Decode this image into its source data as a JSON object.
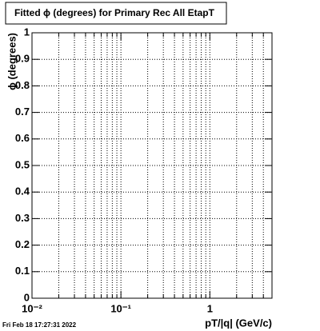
{
  "chart_data": {
    "type": "line",
    "title": "Fitted ϕ (degrees) for Primary Rec All EtapT",
    "xlabel": "pT/|q| (GeV/c)",
    "ylabel": "ϕ (degrees)",
    "timestamp": "Fri Feb 18 17:27:31 2022",
    "series": [],
    "xscale": "log",
    "xlim": [
      0.01,
      5
    ],
    "xticks": [
      {
        "value": 0.01,
        "label": "10⁻²"
      },
      {
        "value": 0.1,
        "label": "10⁻¹"
      },
      1
    ],
    "xminorticks": [
      0.02,
      0.03,
      0.04,
      0.05,
      0.06,
      0.07,
      0.08,
      0.09,
      0.2,
      0.3,
      0.4,
      0.5,
      0.6,
      0.7,
      0.8,
      0.9,
      2,
      3,
      4,
      5
    ],
    "ylim": [
      0,
      1
    ],
    "yticks": [
      0,
      0.1,
      0.2,
      0.3,
      0.4,
      0.5,
      0.6,
      0.7,
      0.8,
      0.9,
      1
    ],
    "grid": true
  }
}
